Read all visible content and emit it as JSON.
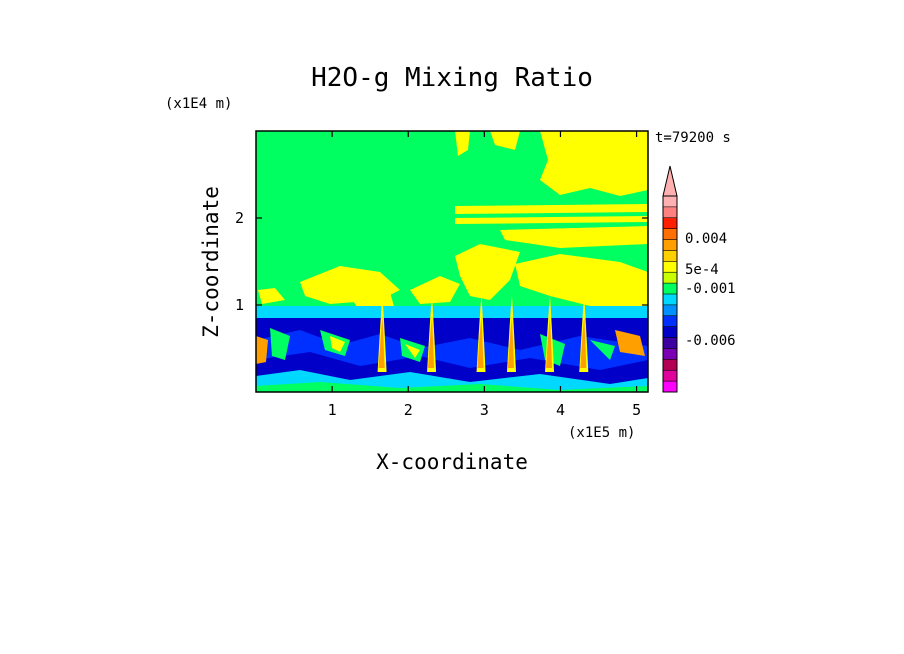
{
  "chart_data": {
    "type": "heatmap",
    "title": "H2O-g Mixing Ratio",
    "xlabel": "X-coordinate",
    "ylabel": "Z-coordinate",
    "x_unit": "(x1E5 m)",
    "y_unit": "(x1E4 m)",
    "time_label": "t=79200 s",
    "xlim": [
      0,
      5.15
    ],
    "ylim": [
      0,
      3.0
    ],
    "x_ticks": [
      1,
      2,
      3,
      4,
      5
    ],
    "y_ticks": [
      1,
      2
    ],
    "colorbar": {
      "colors": [
        "#ff00ff",
        "#e0009a",
        "#b40054",
        "#7a00b4",
        "#3c00a0",
        "#0000c8",
        "#0030ff",
        "#0090ff",
        "#00d8ff",
        "#00ff60",
        "#c8ff00",
        "#ffff00",
        "#ffd000",
        "#ffa000",
        "#ff7000",
        "#ff2000",
        "#ff8080",
        "#ffb0b0"
      ],
      "labels": [
        "0.004",
        "5e-4",
        "-0.001",
        "-0.006"
      ],
      "extend_top": true
    },
    "bands": [
      {
        "name": "lower",
        "z": [
          0.0,
          0.85
        ],
        "color": "#0000c8"
      },
      {
        "name": "cyan",
        "z": [
          0.85,
          0.95
        ],
        "color": "#00d8ff"
      },
      {
        "name": "green",
        "z": [
          0.95,
          3.0
        ],
        "color": "#00ff60"
      }
    ],
    "plumes_x": [
      1.65,
      2.3,
      2.95,
      3.35,
      3.85,
      4.3
    ]
  },
  "labels": {
    "title": "H2O-g Mixing Ratio",
    "xlabel": "X-coordinate",
    "ylabel": "Z-coordinate",
    "x_unit": "(x1E5 m)",
    "y_unit": "(x1E4 m)",
    "time_label": "t=79200 s"
  }
}
